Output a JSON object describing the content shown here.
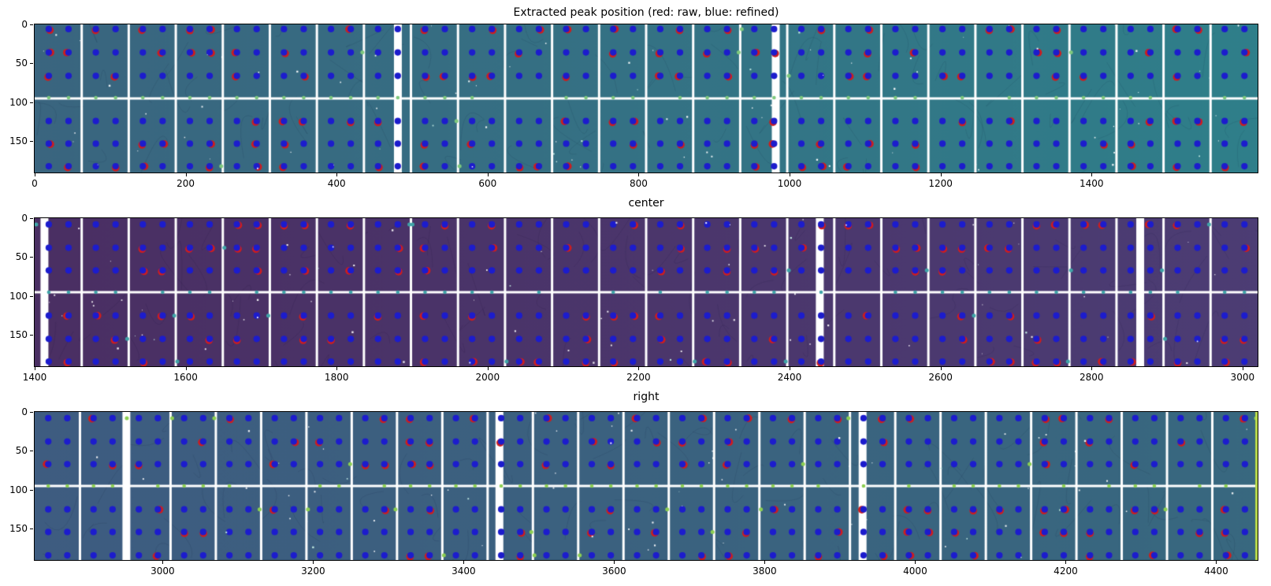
{
  "figure": {
    "background": "#ffffff",
    "description": "Matplotlib figure with three image subplots showing detector panels with extracted diffraction peak positions overlaid as dots"
  },
  "legend": {
    "raw_peaks": "red",
    "refined_peaks": "blue"
  },
  "chart_data": [
    {
      "type": "heatmap",
      "title": "Extracted peak position (red: raw, blue: refined)",
      "xlabel": "",
      "ylabel": "",
      "xlim": [
        0,
        1620
      ],
      "ylim": [
        0,
        190
      ],
      "xticks": [
        0,
        200,
        400,
        600,
        800,
        1000,
        1200,
        1400
      ],
      "yticks": [
        0,
        50,
        100,
        150
      ],
      "grid": false,
      "bg_left": "#3a657f",
      "bg_right": "#2f7f8a",
      "panel_count": 26,
      "wide_gaps_frac": [
        0.297,
        0.606
      ],
      "hline_y": 95,
      "dot_rows": [
        6,
        36,
        66,
        124,
        153,
        182
      ],
      "green_row": 94,
      "dot_color": "#1c1ccd",
      "raw_color": "#cf1d1d",
      "green_color": "#7dc87d",
      "raw_fraction": 0.38,
      "edge_green_prob": 0.25,
      "speckles": 85,
      "edge_stripe": "",
      "seed": 11
    },
    {
      "type": "heatmap",
      "title": "center",
      "xlabel": "",
      "ylabel": "",
      "xlim": [
        1400,
        3020
      ],
      "ylim": [
        0,
        190
      ],
      "xticks": [
        1400,
        1600,
        1800,
        2000,
        2200,
        2400,
        2600,
        2800,
        3000
      ],
      "yticks": [
        0,
        50,
        100,
        150
      ],
      "grid": false,
      "bg_left": "#4a2f63",
      "bg_right": "#4c3d74",
      "panel_count": 26,
      "wide_gaps_frac": [
        0.008,
        0.642,
        0.904
      ],
      "hline_y": 95,
      "dot_rows": [
        8,
        38,
        67,
        125,
        155,
        184
      ],
      "green_row": 95,
      "dot_color": "#1c1ccd",
      "raw_color": "#cf1d1d",
      "green_color": "#3fa4a8",
      "raw_fraction": 0.32,
      "edge_green_prob": 0.32,
      "speckles": 70,
      "edge_stripe": "",
      "seed": 23
    },
    {
      "type": "heatmap",
      "title": "right",
      "xlabel": "",
      "ylabel": "",
      "xlim": [
        2830,
        4455
      ],
      "ylim": [
        0,
        190
      ],
      "xticks": [
        3000,
        3200,
        3400,
        3600,
        3800,
        4000,
        4200,
        4400
      ],
      "yticks": [
        0,
        50,
        100,
        150
      ],
      "grid": false,
      "bg_left": "#3e5c80",
      "bg_right": "#38687f",
      "panel_count": 27,
      "wide_gaps_frac": [
        0.075,
        0.38,
        0.677
      ],
      "hline_y": 95,
      "dot_rows": [
        8,
        38,
        67,
        125,
        154,
        184
      ],
      "green_row": 95,
      "dot_color": "#1c1ccd",
      "raw_color": "#cf1d1d",
      "green_color": "#8ccf52",
      "raw_fraction": 0.3,
      "edge_green_prob": 0.5,
      "speckles": 65,
      "edge_stripe": "#b8d94a",
      "seed": 37
    }
  ]
}
